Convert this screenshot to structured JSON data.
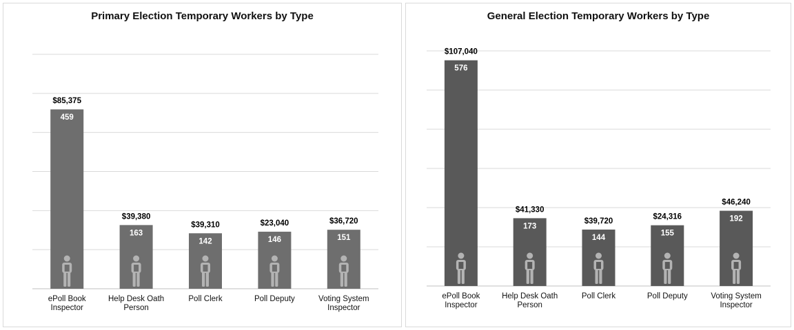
{
  "chart_data": [
    {
      "type": "bar",
      "title": "Primary Election Temporary Workers by Type",
      "categories": [
        [
          "ePoll Book",
          "Inspector"
        ],
        [
          "Help Desk Oath",
          "Person"
        ],
        [
          "Poll Clerk"
        ],
        [
          "Poll Deputy"
        ],
        [
          "Voting System",
          "Inspector"
        ]
      ],
      "series": [
        {
          "values": [
            459,
            163,
            142,
            146,
            151
          ]
        }
      ],
      "cost_labels": [
        "$85,375",
        "$39,380",
        "$39,310",
        "$23,040",
        "$36,720"
      ],
      "ylim": [
        0,
        600
      ],
      "grid": true,
      "bar_color": "#6e6e6e",
      "icon": "person-icon",
      "icon_color": "#b3b3b3"
    },
    {
      "type": "bar",
      "title": "General Election Temporary Workers by Type",
      "categories": [
        [
          "ePoll Book",
          "Inspector"
        ],
        [
          "Help Desk Oath",
          "Person"
        ],
        [
          "Poll Clerk"
        ],
        [
          "Poll Deputy"
        ],
        [
          "Voting System",
          "Inspector"
        ]
      ],
      "series": [
        {
          "values": [
            576,
            173,
            144,
            155,
            192
          ]
        }
      ],
      "cost_labels": [
        "$107,040",
        "$41,330",
        "$39,720",
        "$24,316",
        "$46,240"
      ],
      "ylim": [
        0,
        600
      ],
      "grid": true,
      "bar_color": "#595959",
      "icon": "person-icon",
      "icon_color": "#b3b3b3"
    }
  ]
}
